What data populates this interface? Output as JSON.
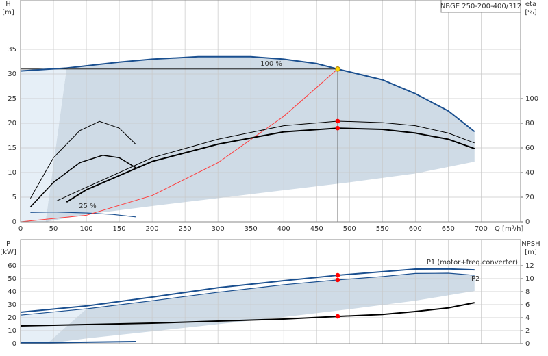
{
  "chart_data": [
    {
      "type": "line",
      "title": "NBGE 250-200-400/312",
      "x_label": "Q [m³/h]",
      "y_label": "H",
      "y_unit": "[m]",
      "y2_label": "eta",
      "y2_unit": "[%]",
      "xlim": [
        0,
        760
      ],
      "ylim": [
        0,
        45
      ],
      "y2lim": [
        0,
        180
      ],
      "xticks": [
        0,
        50,
        100,
        150,
        200,
        250,
        300,
        350,
        400,
        450,
        500,
        550,
        600,
        650,
        700
      ],
      "yticks": [
        0,
        5,
        10,
        15,
        20,
        25,
        30,
        35
      ],
      "y2ticks": [
        0,
        20,
        40,
        60,
        80,
        100
      ],
      "grid": true,
      "range": {
        "color": "#cfdbe6",
        "light_color": "#e6eff7",
        "x": [
          690,
          600,
          500,
          400,
          300,
          200,
          100,
          38
        ],
        "values": [
          12.2,
          9.8,
          8.0,
          6.4,
          4.8,
          3.2,
          1.5,
          0
        ]
      },
      "duty_q": 482,
      "duty_points": [
        {
          "value": 31,
          "color": "#ffd700"
        },
        {
          "value": 81.7,
          "axis": "y2",
          "color": "#ff0000"
        },
        {
          "value": 76,
          "axis": "y2",
          "color": "#ff0000"
        }
      ],
      "series": [
        {
          "name": "100 %",
          "color": "#1a4f8f",
          "width": 2,
          "x": [
            0,
            70,
            150,
            200,
            270,
            350,
            400,
            450,
            482,
            550,
            600,
            650,
            690
          ],
          "values": [
            30.6,
            31.2,
            32.4,
            33.0,
            33.5,
            33.5,
            33.0,
            32.1,
            31.0,
            28.8,
            26.0,
            22.5,
            18.3
          ]
        },
        {
          "name": "25 %",
          "color": "#1a4f8f",
          "width": 1.2,
          "x": [
            15,
            50,
            100,
            140,
            175
          ],
          "values": [
            1.9,
            2.0,
            1.8,
            1.5,
            1.0
          ]
        },
        {
          "color": "#ff3b3b",
          "width": 1,
          "x": [
            0,
            100,
            200,
            300,
            400,
            482
          ],
          "values": [
            0,
            1.33,
            5.34,
            12.0,
            21.4,
            31.0
          ]
        },
        {
          "color": "#000000",
          "width": 1,
          "axis": "y2",
          "x": [
            55,
            100,
            200,
            300,
            400,
            482,
            550,
            600,
            650,
            690
          ],
          "values": [
            17,
            28,
            52,
            67,
            78,
            81.7,
            80.5,
            78,
            72,
            64
          ]
        },
        {
          "color": "#000000",
          "width": 2,
          "axis": "y2",
          "x": [
            70,
            100,
            200,
            300,
            400,
            482,
            550,
            600,
            650,
            690
          ],
          "values": [
            16,
            26,
            49,
            63,
            73,
            76,
            75,
            72,
            67,
            59.4
          ]
        },
        {
          "color": "#000000",
          "width": 1,
          "axis": "y2",
          "x": [
            15,
            50,
            90,
            120,
            150,
            175
          ],
          "values": [
            19,
            52,
            74,
            81.5,
            76,
            63
          ]
        },
        {
          "color": "#000000",
          "width": 1.5,
          "axis": "y2",
          "x": [
            15,
            50,
            90,
            125,
            150,
            175
          ],
          "values": [
            12,
            32,
            48,
            54,
            52,
            44
          ]
        }
      ]
    },
    {
      "type": "line",
      "y_label": "P",
      "y_unit": "[kW]",
      "y2_label": "NPSH",
      "y2_unit": "[m]",
      "xlim": [
        0,
        760
      ],
      "ylim": [
        0,
        80
      ],
      "y2lim": [
        0,
        16
      ],
      "yticks": [
        0,
        10,
        20,
        30,
        40,
        50,
        60
      ],
      "y2ticks": [
        0,
        2,
        4,
        6,
        8,
        10,
        12
      ],
      "grid": true,
      "range": {
        "color": "#cfdbe6",
        "light_color": "#e6eff7",
        "x": [
          690,
          600,
          500,
          400,
          300,
          200,
          100,
          40
        ],
        "values": [
          40.5,
          33,
          26.5,
          20.5,
          15,
          9.5,
          4,
          0
        ]
      },
      "duty_q": 482,
      "duty_points": [
        {
          "value": 52.6,
          "color": "#ff0000"
        },
        {
          "value": 49,
          "color": "#ff0000"
        },
        {
          "value": 4.2,
          "axis": "y2",
          "color": "#ff0000"
        }
      ],
      "series": [
        {
          "name": "P2",
          "color": "#1a4f8f",
          "width": 1.2,
          "x": [
            0,
            100,
            200,
            300,
            400,
            482,
            550,
            600,
            650,
            690
          ],
          "values": [
            22,
            26.8,
            33,
            39.5,
            45.3,
            49,
            51.6,
            54,
            54.2,
            52.6
          ]
        },
        {
          "name": "P1 (motor+freq.converter)",
          "color": "#1a4f8f",
          "width": 2,
          "x": [
            0,
            100,
            200,
            300,
            400,
            482,
            550,
            600,
            650,
            690
          ],
          "values": [
            24.2,
            29,
            35.8,
            43,
            48.4,
            52.6,
            55.3,
            57.4,
            57.5,
            56.8
          ]
        },
        {
          "color": "#000000",
          "width": 2,
          "axis": "y2",
          "x": [
            0,
            100,
            200,
            300,
            400,
            482,
            550,
            600,
            650,
            690
          ],
          "values": [
            2.74,
            2.95,
            3.16,
            3.47,
            3.79,
            4.2,
            4.5,
            4.95,
            5.5,
            6.3
          ]
        },
        {
          "color": "#1a4f8f",
          "width": 2,
          "x": [
            0,
            175
          ],
          "values": [
            0.5,
            1.6
          ]
        }
      ]
    }
  ]
}
